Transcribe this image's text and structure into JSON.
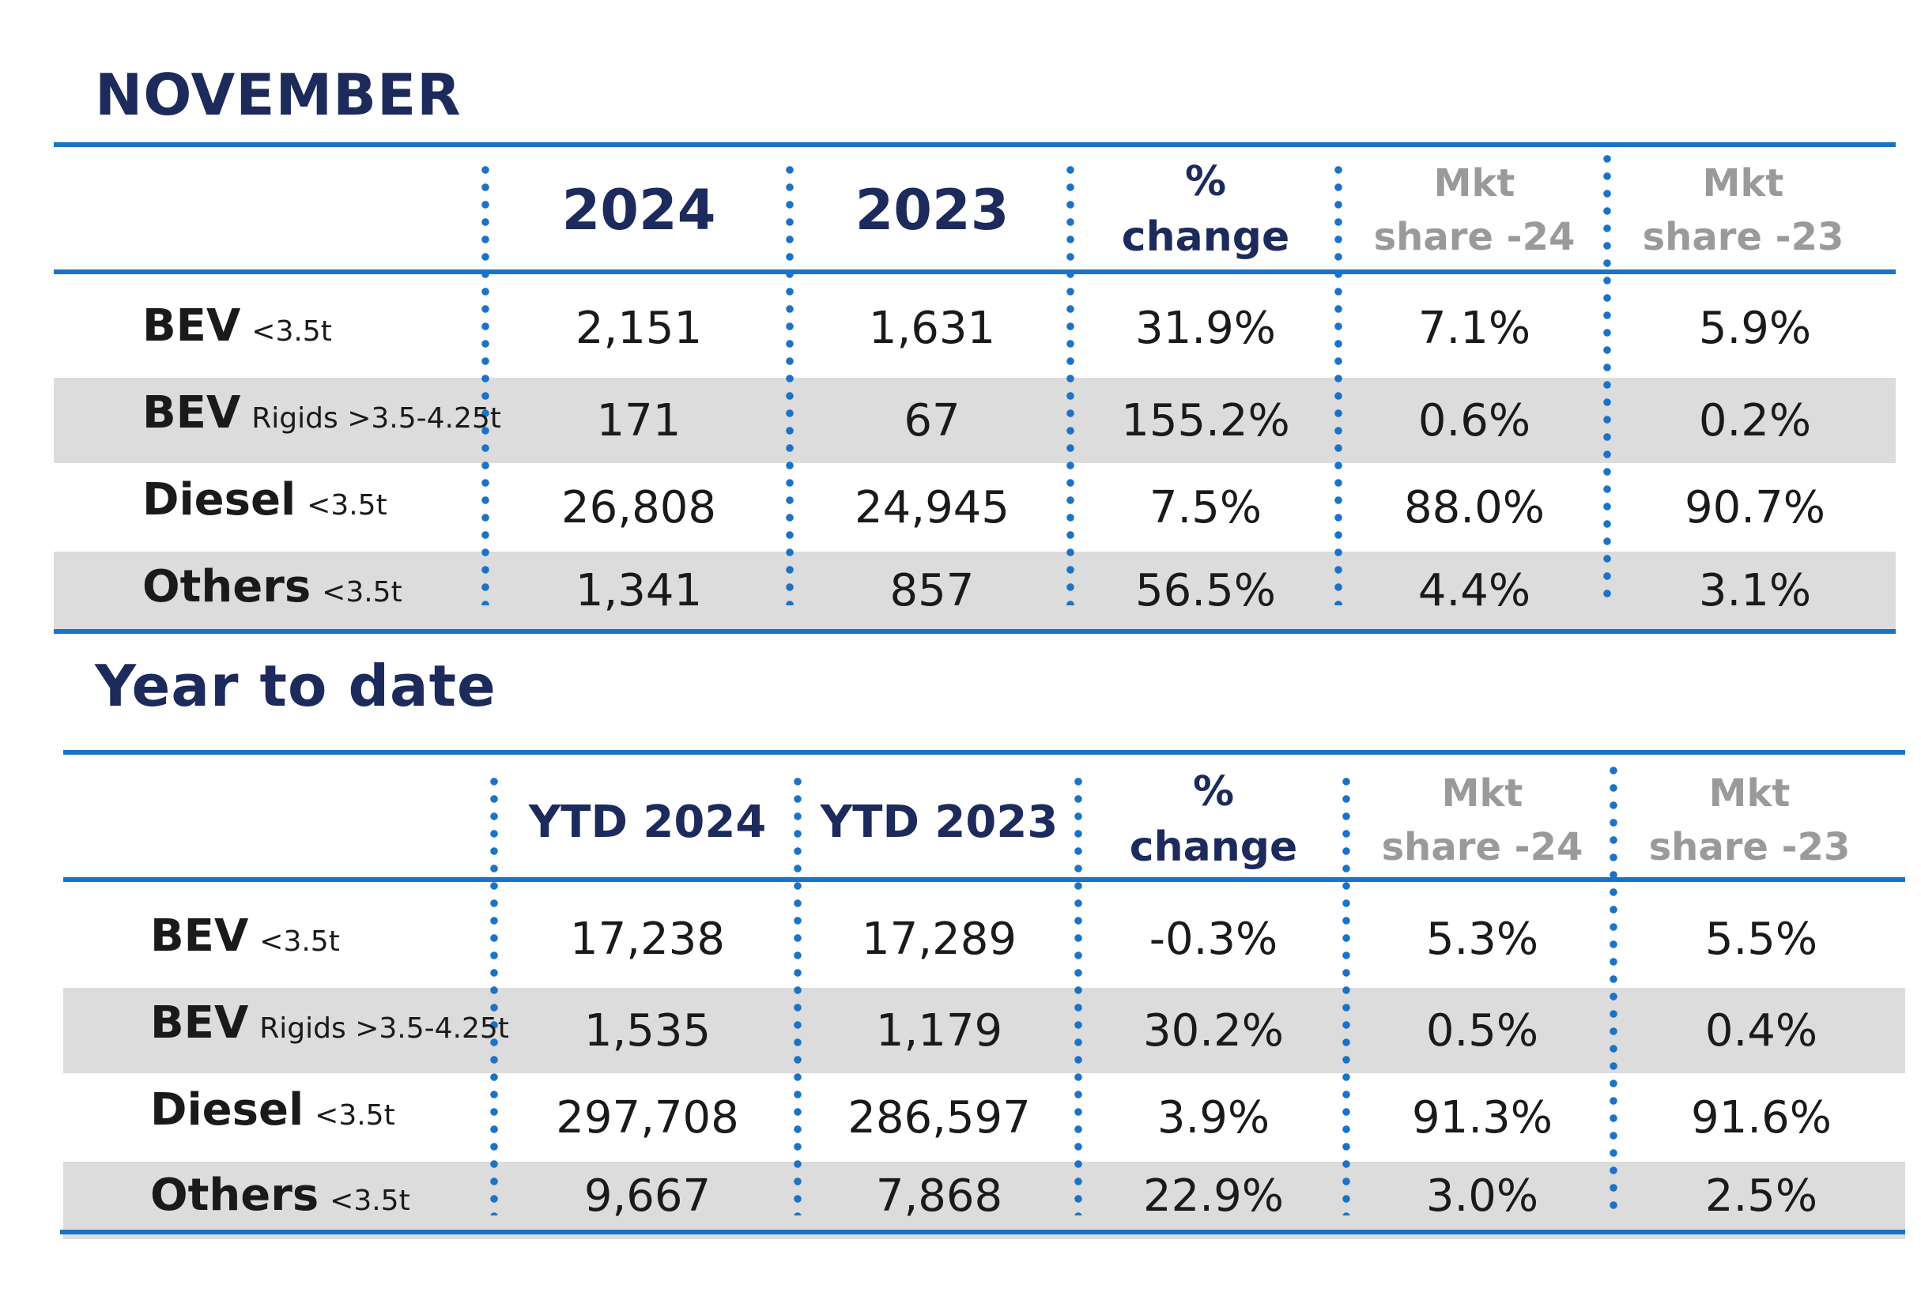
{
  "sections": [
    {
      "heading": "NOVEMBER",
      "headers": {
        "col1": "2024",
        "col2": "2023",
        "change": [
          "%",
          "change"
        ],
        "mkt24": [
          "Mkt",
          "share -24"
        ],
        "mkt23": [
          "Mkt",
          "share -23"
        ]
      },
      "rows": [
        {
          "label": "BEV",
          "sub": "<3.5t",
          "v1": "2,151",
          "v2": "1,631",
          "change": "31.9%",
          "mkt24": "7.1%",
          "mkt23": "5.9%"
        },
        {
          "label": "BEV",
          "sub": "Rigids >3.5-4.25t",
          "v1": "171",
          "v2": "67",
          "change": "155.2%",
          "mkt24": "0.6%",
          "mkt23": "0.2%"
        },
        {
          "label": "Diesel",
          "sub": "<3.5t",
          "v1": "26,808",
          "v2": "24,945",
          "change": "7.5%",
          "mkt24": "88.0%",
          "mkt23": "90.7%"
        },
        {
          "label": "Others",
          "sub": "<3.5t",
          "v1": "1,341",
          "v2": "857",
          "change": "56.5%",
          "mkt24": "4.4%",
          "mkt23": "3.1%"
        }
      ]
    },
    {
      "heading": "Year to date",
      "headers": {
        "col1": "YTD 2024",
        "col2": "YTD 2023",
        "change": [
          "%",
          "change"
        ],
        "mkt24": [
          "Mkt",
          "share -24"
        ],
        "mkt23": [
          "Mkt",
          "share -23"
        ]
      },
      "rows": [
        {
          "label": "BEV",
          "sub": "<3.5t",
          "v1": "17,238",
          "v2": "17,289",
          "change": "-0.3%",
          "mkt24": "5.3%",
          "mkt23": "5.5%"
        },
        {
          "label": "BEV",
          "sub": "Rigids >3.5-4.25t",
          "v1": "1,535",
          "v2": "1,179",
          "change": "30.2%",
          "mkt24": "0.5%",
          "mkt23": "0.4%"
        },
        {
          "label": "Diesel",
          "sub": "<3.5t",
          "v1": "297,708",
          "v2": "286,597",
          "change": "3.9%",
          "mkt24": "91.3%",
          "mkt23": "91.6%"
        },
        {
          "label": "Others",
          "sub": "<3.5t",
          "v1": "9,667",
          "v2": "7,868",
          "change": "22.9%",
          "mkt24": "3.0%",
          "mkt23": "2.5%"
        }
      ]
    }
  ]
}
